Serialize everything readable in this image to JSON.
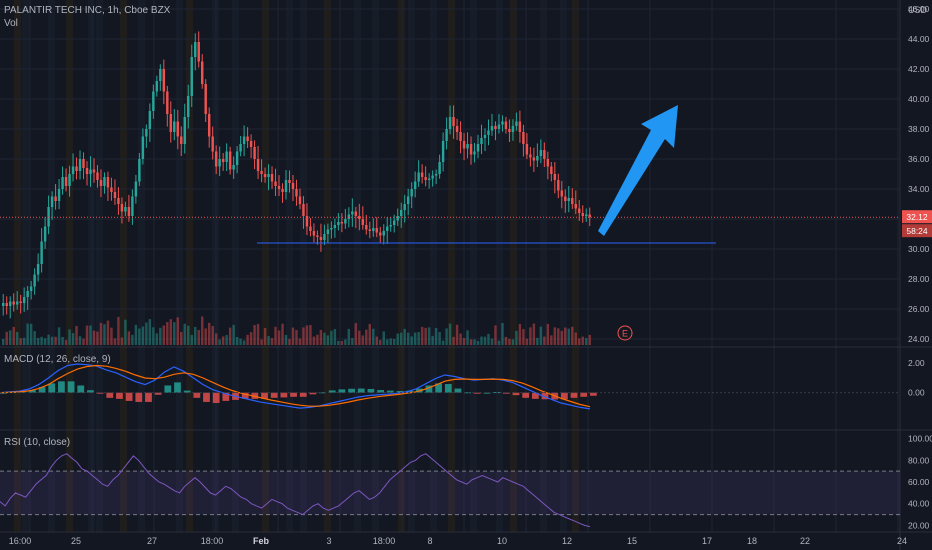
{
  "header": {
    "symbol": "PALANTIR TECH INC, 1h, Cboe BZX",
    "volume_label": "Vol",
    "currency": "USD"
  },
  "price_tags": {
    "last": "32.12",
    "countdown": "58:24"
  },
  "earnings_marker": "E",
  "colors": {
    "background": "#131722",
    "up": "#26a69a",
    "down": "#ef5350",
    "macd_line": "#2962ff",
    "signal_line": "#ff6d00",
    "rsi_line": "#7e57c2",
    "arrow": "#2196f3",
    "support_line": "#2962ff"
  },
  "chart_data": [
    {
      "type": "candlestick",
      "title": "PALANTIR TECH INC, 1h, Cboe BZX",
      "y_axis_ticks": [
        24,
        26,
        28,
        30,
        32,
        34,
        36,
        38,
        40,
        42,
        44,
        46
      ],
      "ylim": [
        23.6,
        46.6
      ],
      "x_axis_labels": [
        "16:00",
        "25",
        "27",
        "18:00",
        "Feb",
        "3",
        "18:00",
        "8",
        "10",
        "12",
        "15",
        "17",
        "18",
        "22",
        "24"
      ],
      "last_price": 32.12,
      "support_level": 30.4,
      "closes": [
        26.4,
        26.2,
        26.5,
        26.3,
        26.5,
        26.4,
        26.8,
        27.2,
        27.5,
        28.3,
        29.0,
        30.5,
        31.5,
        32.8,
        33.5,
        33.2,
        34.0,
        34.8,
        34.2,
        35.0,
        35.5,
        35.2,
        36.0,
        35.4,
        35.0,
        35.3,
        35.1,
        34.6,
        34.2,
        34.8,
        34.1,
        33.8,
        33.4,
        33.0,
        32.5,
        32.8,
        32.2,
        33.5,
        34.5,
        36.0,
        37.5,
        38.0,
        39.2,
        40.5,
        41.2,
        42.0,
        40.5,
        39.0,
        37.8,
        38.5,
        37.5,
        37.0,
        38.8,
        40.2,
        42.8,
        43.8,
        42.5,
        41.0,
        39.0,
        37.5,
        36.5,
        35.5,
        36.0,
        35.8,
        36.5,
        35.3,
        35.6,
        36.5,
        37.0,
        37.5,
        37.2,
        36.8,
        36.0,
        35.2,
        35.0,
        34.8,
        35.0,
        34.5,
        34.2,
        34.0,
        33.8,
        34.6,
        34.4,
        34.0,
        33.5,
        33.0,
        32.2,
        31.5,
        31.2,
        30.9,
        30.8,
        30.6,
        31.0,
        31.3,
        31.4,
        31.6,
        31.8,
        31.7,
        32.0,
        32.3,
        32.5,
        32.2,
        32.0,
        31.6,
        31.3,
        31.2,
        31.4,
        31.1,
        30.9,
        31.2,
        31.5,
        31.6,
        31.9,
        32.2,
        32.6,
        33.0,
        33.5,
        34.0,
        34.5,
        35.1,
        34.8,
        34.6,
        34.7,
        34.9,
        35.0,
        35.8,
        37.2,
        38.0,
        38.8,
        38.2,
        37.8,
        37.2,
        36.7,
        37.0,
        36.3,
        36.5,
        37.0,
        37.4,
        37.6,
        37.9,
        38.2,
        38.0,
        38.3,
        38.5,
        38.0,
        37.8,
        38.2,
        38.5,
        37.8,
        37.0,
        36.3,
        36.1,
        35.9,
        36.2,
        36.6,
        36.0,
        35.5,
        35.0,
        34.6,
        33.9,
        33.5,
        33.2,
        33.4,
        33.0,
        32.7,
        32.4,
        32.2,
        32.3,
        32.12
      ],
      "volume_note": "volume bars shown along bottom of price pane",
      "earnings_marker_label": "E"
    },
    {
      "type": "line",
      "title": "MACD (12, 26, close, 9)",
      "y_axis_ticks": [
        0.0,
        2.0
      ],
      "ylim": [
        -2.4,
        2.9
      ],
      "series": [
        {
          "name": "MACD",
          "values": [
            0.0,
            0.05,
            0.1,
            0.25,
            0.55,
            1.0,
            1.5,
            1.85,
            1.95,
            1.9,
            1.8,
            1.55,
            1.35,
            1.05,
            0.75,
            0.55,
            0.85,
            1.4,
            1.75,
            1.45,
            1.0,
            0.55,
            0.2,
            0.0,
            -0.2,
            -0.35,
            -0.5,
            -0.65,
            -0.75,
            -0.85,
            -0.95,
            -1.05,
            -1.0,
            -0.9,
            -0.75,
            -0.6,
            -0.45,
            -0.3,
            -0.2,
            -0.15,
            -0.1,
            -0.05,
            0.05,
            0.25,
            0.6,
            0.95,
            1.2,
            1.1,
            0.95,
            0.85,
            0.9,
            0.95,
            0.85,
            0.7,
            0.4,
            0.1,
            -0.2,
            -0.45,
            -0.7,
            -0.85,
            -1.0,
            -1.1
          ]
        },
        {
          "name": "Signal",
          "values": [
            0.0,
            0.02,
            0.05,
            0.12,
            0.28,
            0.55,
            0.95,
            1.3,
            1.6,
            1.78,
            1.85,
            1.8,
            1.65,
            1.45,
            1.2,
            1.0,
            0.95,
            1.05,
            1.25,
            1.35,
            1.25,
            1.0,
            0.7,
            0.4,
            0.15,
            -0.05,
            -0.2,
            -0.35,
            -0.5,
            -0.62,
            -0.75,
            -0.85,
            -0.92,
            -0.92,
            -0.86,
            -0.76,
            -0.64,
            -0.5,
            -0.38,
            -0.28,
            -0.2,
            -0.13,
            -0.05,
            0.05,
            0.25,
            0.5,
            0.78,
            0.9,
            0.93,
            0.9,
            0.9,
            0.92,
            0.9,
            0.82,
            0.65,
            0.4,
            0.12,
            -0.12,
            -0.38,
            -0.6,
            -0.8,
            -0.95
          ]
        }
      ]
    },
    {
      "type": "line",
      "title": "RSI (10, close)",
      "y_axis_ticks": [
        20.0,
        40.0,
        60.0,
        80.0,
        100.0
      ],
      "ylim": [
        14,
        106
      ],
      "band": [
        30,
        70
      ],
      "series": [
        {
          "name": "RSI",
          "values": [
            42,
            38,
            45,
            50,
            48,
            46,
            52,
            58,
            62,
            66,
            74,
            80,
            84,
            86,
            82,
            78,
            72,
            70,
            66,
            62,
            58,
            56,
            62,
            66,
            72,
            78,
            84,
            80,
            74,
            68,
            64,
            60,
            58,
            55,
            52,
            50,
            56,
            60,
            64,
            60,
            55,
            50,
            48,
            52,
            56,
            54,
            50,
            46,
            44,
            40,
            38,
            36,
            40,
            44,
            42,
            40,
            36,
            34,
            32,
            30,
            34,
            38,
            40,
            36,
            34,
            36,
            38,
            42,
            46,
            50,
            52,
            48,
            44,
            46,
            50,
            56,
            62,
            66,
            70,
            74,
            78,
            80,
            84,
            86,
            82,
            78,
            74,
            70,
            66,
            62,
            60,
            58,
            62,
            64,
            66,
            64,
            62,
            60,
            64,
            62,
            60,
            58,
            56,
            52,
            48,
            44,
            40,
            36,
            32,
            30,
            28,
            26,
            24,
            22,
            20,
            19
          ]
        }
      ]
    }
  ]
}
